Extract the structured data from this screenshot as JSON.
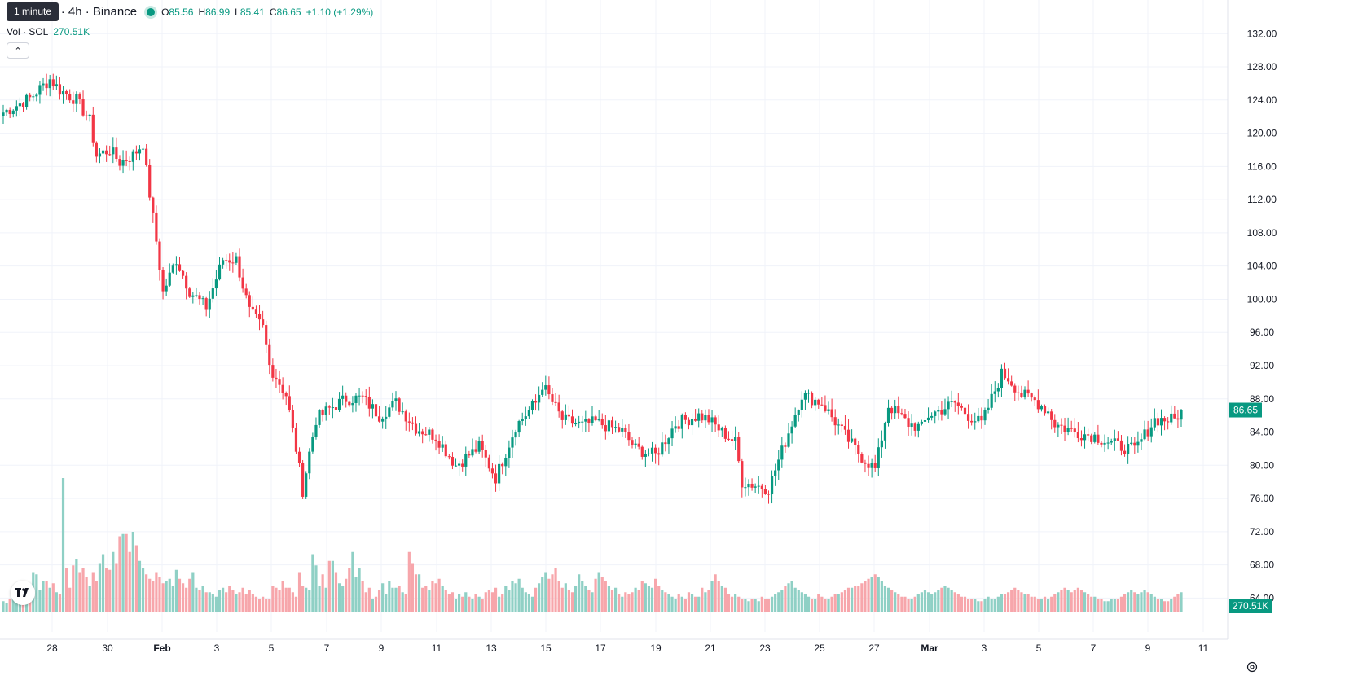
{
  "tooltip": "1 minute",
  "header": {
    "symbol": "TetherUS · 4h · Binance",
    "open_label": "O",
    "open": "85.56",
    "high_label": "H",
    "high": "86.99",
    "low_label": "L",
    "low": "85.41",
    "close_label": "C",
    "close": "86.65",
    "change": "+1.10 (+1.29%)"
  },
  "volume": {
    "label": "Vol · SOL",
    "value": "270.51K"
  },
  "icons": {
    "collapse": "chevron-up-icon",
    "logo": "tradingview-logo",
    "settings": "settings-icon"
  },
  "colors": {
    "up": "#089981",
    "down": "#f23645",
    "up_vol": "#8fd0c5",
    "down_vol": "#f7a6ab",
    "grid": "#f0f3fa",
    "axis_text": "#131722"
  },
  "chart_data": {
    "type": "candlestick",
    "y_ticks": [
      "132.00",
      "128.00",
      "124.00",
      "120.00",
      "116.00",
      "112.00",
      "108.00",
      "104.00",
      "100.00",
      "96.00",
      "92.00",
      "88.00",
      "84.00",
      "80.00",
      "76.00",
      "72.00",
      "68.00",
      "64.00"
    ],
    "ylim": [
      60.9,
      133.3
    ],
    "x_ticks": [
      "28",
      "30",
      "Feb",
      "3",
      "5",
      "7",
      "9",
      "11",
      "13",
      "15",
      "17",
      "19",
      "21",
      "23",
      "25",
      "27",
      "Mar",
      "3",
      "5",
      "7",
      "9",
      "11"
    ],
    "last_price": "86.65",
    "last_volume": "270.51K",
    "anchors": [
      [
        0,
        122.5
      ],
      [
        8,
        124.2
      ],
      [
        14,
        126.5
      ],
      [
        17,
        125.2
      ],
      [
        22,
        124
      ],
      [
        26,
        121.5
      ],
      [
        28,
        117.3
      ],
      [
        32,
        118
      ],
      [
        35,
        116.5
      ],
      [
        39,
        117.3
      ],
      [
        42,
        118.8
      ],
      [
        43,
        115.5
      ],
      [
        46,
        107
      ],
      [
        48,
        100.8
      ],
      [
        52,
        104.8
      ],
      [
        56,
        101
      ],
      [
        61,
        99
      ],
      [
        66,
        104.8
      ],
      [
        70,
        104.8
      ],
      [
        74,
        98.5
      ],
      [
        78,
        96.5
      ],
      [
        80,
        92
      ],
      [
        85,
        88.5
      ],
      [
        88,
        82
      ],
      [
        90,
        77
      ],
      [
        92,
        81.5
      ],
      [
        94,
        85.5
      ],
      [
        98,
        86.8
      ],
      [
        103,
        88
      ],
      [
        108,
        88.1
      ],
      [
        113,
        86
      ],
      [
        118,
        87.5
      ],
      [
        124,
        84.5
      ],
      [
        130,
        83.5
      ],
      [
        136,
        80
      ],
      [
        143,
        82.2
      ],
      [
        148,
        78.5
      ],
      [
        154,
        84.7
      ],
      [
        160,
        87.5
      ],
      [
        162,
        89.7
      ],
      [
        168,
        85.5
      ],
      [
        174,
        84.8
      ],
      [
        178,
        85.2
      ],
      [
        186,
        84.1
      ],
      [
        190,
        82
      ],
      [
        196,
        81.2
      ],
      [
        202,
        85
      ],
      [
        209,
        86
      ],
      [
        212,
        85.5
      ],
      [
        216,
        84
      ],
      [
        220,
        82.8
      ],
      [
        222,
        78
      ],
      [
        230,
        77.2
      ],
      [
        240,
        88.5
      ],
      [
        246,
        87.5
      ],
      [
        254,
        83
      ],
      [
        258,
        81
      ],
      [
        262,
        79.5
      ],
      [
        266,
        87.2
      ],
      [
        272,
        85
      ],
      [
        276,
        84.5
      ],
      [
        278,
        86
      ],
      [
        286,
        87.5
      ],
      [
        290,
        86
      ],
      [
        294,
        85
      ],
      [
        298,
        89
      ],
      [
        300,
        91
      ],
      [
        302,
        90.5
      ],
      [
        306,
        88.5
      ],
      [
        310,
        87.8
      ],
      [
        314,
        86.5
      ],
      [
        316,
        85
      ],
      [
        322,
        84
      ],
      [
        328,
        83.5
      ],
      [
        334,
        82.5
      ],
      [
        340,
        81.8
      ],
      [
        346,
        85.5
      ],
      [
        352,
        85.5
      ],
      [
        354,
        86.65
      ]
    ],
    "volumes": [
      0.25,
      0.2,
      0.3,
      0.4,
      0.5,
      0.35,
      0.3,
      0.3,
      0.55,
      0.9,
      0.85,
      0.5,
      0.7,
      0.7,
      0.55,
      0.65,
      0.45,
      0.4,
      3.0,
      1.0,
      0.55,
      1.05,
      1.2,
      0.9,
      1.0,
      0.8,
      0.6,
      0.9,
      0.7,
      1.1,
      1.3,
      1.0,
      0.95,
      1.35,
      1.1,
      1.7,
      1.75,
      1.75,
      1.35,
      1.8,
      1.5,
      1.15,
      1.0,
      0.85,
      0.75,
      0.7,
      0.9,
      0.8,
      0.65,
      0.7,
      0.75,
      0.6,
      0.95,
      0.75,
      0.65,
      0.55,
      0.75,
      0.9,
      0.55,
      0.5,
      0.6,
      0.45,
      0.45,
      0.4,
      0.35,
      0.5,
      0.55,
      0.45,
      0.6,
      0.5,
      0.4,
      0.45,
      0.55,
      0.4,
      0.5,
      0.4,
      0.35,
      0.3,
      0.35,
      0.3,
      0.3,
      0.6,
      0.55,
      0.5,
      0.7,
      0.55,
      0.55,
      0.45,
      0.35,
      0.9,
      0.6,
      0.55,
      0.5,
      1.3,
      1.05,
      0.6,
      0.85,
      0.55,
      1.15,
      1.15,
      0.9,
      0.65,
      0.6,
      0.75,
      1.0,
      1.35,
      0.8,
      1.0,
      0.7,
      0.45,
      0.55,
      0.3,
      0.35,
      0.5,
      0.65,
      0.4,
      0.7,
      0.55,
      0.55,
      0.6,
      0.45,
      0.4,
      1.35,
      1.1,
      0.85,
      0.85,
      0.55,
      0.6,
      0.5,
      0.7,
      0.65,
      0.75,
      0.6,
      0.5,
      0.4,
      0.45,
      0.3,
      0.4,
      0.35,
      0.45,
      0.35,
      0.3,
      0.4,
      0.35,
      0.3,
      0.45,
      0.5,
      0.45,
      0.55,
      0.35,
      0.4,
      0.6,
      0.5,
      0.7,
      0.65,
      0.75,
      0.55,
      0.45,
      0.4,
      0.35,
      0.55,
      0.65,
      0.8,
      0.9,
      0.75,
      0.85,
      1.0,
      0.7,
      0.55,
      0.65,
      0.5,
      0.45,
      0.6,
      0.85,
      0.7,
      0.6,
      0.5,
      0.45,
      0.75,
      0.9,
      0.8,
      0.7,
      0.6,
      0.5,
      0.55,
      0.4,
      0.35,
      0.45,
      0.4,
      0.45,
      0.55,
      0.5,
      0.7,
      0.65,
      0.6,
      0.55,
      0.75,
      0.6,
      0.5,
      0.45,
      0.4,
      0.35,
      0.3,
      0.4,
      0.35,
      0.3,
      0.45,
      0.4,
      0.35,
      0.35,
      0.55,
      0.45,
      0.5,
      0.7,
      0.85,
      0.7,
      0.6,
      0.55,
      0.4,
      0.35,
      0.4,
      0.35,
      0.3,
      0.3,
      0.25,
      0.3,
      0.3,
      0.25,
      0.35,
      0.3,
      0.3,
      0.35,
      0.4,
      0.45,
      0.5,
      0.6,
      0.65,
      0.7,
      0.55,
      0.5,
      0.45,
      0.4,
      0.35,
      0.3,
      0.3,
      0.4,
      0.35,
      0.3,
      0.3,
      0.35,
      0.4,
      0.4,
      0.45,
      0.5,
      0.55,
      0.55,
      0.6,
      0.6,
      0.65,
      0.7,
      0.75,
      0.8,
      0.85,
      0.8,
      0.7,
      0.6,
      0.55,
      0.5,
      0.45,
      0.4,
      0.35,
      0.35,
      0.3,
      0.3,
      0.35,
      0.4,
      0.45,
      0.5,
      0.45,
      0.4,
      0.45,
      0.5,
      0.55,
      0.6,
      0.55,
      0.5,
      0.45,
      0.4,
      0.35,
      0.35,
      0.3,
      0.3,
      0.3,
      0.25,
      0.25,
      0.3,
      0.35,
      0.3,
      0.3,
      0.35,
      0.4,
      0.4,
      0.45,
      0.5,
      0.55,
      0.5,
      0.45,
      0.4,
      0.4,
      0.35,
      0.35,
      0.3,
      0.3,
      0.35,
      0.3,
      0.35,
      0.4,
      0.45,
      0.5,
      0.55,
      0.5,
      0.45,
      0.5,
      0.55,
      0.5,
      0.45,
      0.4,
      0.35,
      0.35,
      0.3,
      0.3,
      0.25,
      0.25,
      0.3,
      0.3,
      0.3,
      0.35,
      0.4,
      0.45,
      0.5,
      0.45,
      0.4,
      0.45,
      0.5,
      0.45,
      0.4,
      0.35,
      0.3,
      0.3,
      0.25,
      0.25,
      0.3,
      0.35,
      0.4,
      0.45,
      0.5,
      0.55,
      0.5,
      0.45,
      0.4
    ]
  }
}
